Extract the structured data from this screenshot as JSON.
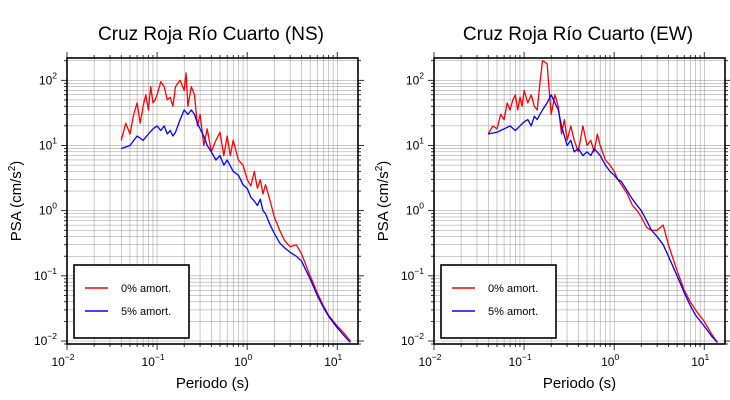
{
  "chart_data": [
    {
      "type": "line",
      "title": "Cruz Roja Río Cuarto (NS)",
      "xlabel": "Periodo (s)",
      "ylabel_main": "PSA (cm/s",
      "ylabel_exp": "2",
      "ylabel_close": ")",
      "xscale": "log",
      "yscale": "log",
      "xlim": [
        0.01,
        17
      ],
      "ylim": [
        0.009,
        220
      ],
      "grid": true,
      "legend_position": "bottom-left",
      "x_ticks": [
        {
          "base": "10",
          "exp": "−2"
        },
        {
          "base": "10",
          "exp": "−1"
        },
        {
          "base": "10",
          "exp": "0"
        },
        {
          "base": "10",
          "exp": "1"
        }
      ],
      "y_ticks": [
        {
          "base": "10",
          "exp": "−2"
        },
        {
          "base": "10",
          "exp": "−1"
        },
        {
          "base": "10",
          "exp": "0"
        },
        {
          "base": "10",
          "exp": "1"
        },
        {
          "base": "10",
          "exp": "2"
        }
      ],
      "series": [
        {
          "name": "0% amort.",
          "color": "#ff0000",
          "x": [
            0.04,
            0.045,
            0.05,
            0.055,
            0.06,
            0.065,
            0.07,
            0.075,
            0.08,
            0.085,
            0.09,
            0.095,
            0.1,
            0.11,
            0.12,
            0.13,
            0.14,
            0.15,
            0.16,
            0.18,
            0.2,
            0.21,
            0.22,
            0.24,
            0.26,
            0.28,
            0.3,
            0.33,
            0.36,
            0.4,
            0.45,
            0.5,
            0.55,
            0.6,
            0.65,
            0.7,
            0.8,
            0.9,
            1.0,
            1.1,
            1.2,
            1.3,
            1.4,
            1.5,
            1.6,
            1.8,
            2.0,
            2.3,
            2.6,
            3.0,
            3.5,
            4.0,
            5.0,
            6.0,
            7.0,
            8.0,
            10.0,
            12.0,
            14.0
          ],
          "y": [
            12,
            22,
            15,
            30,
            45,
            22,
            40,
            60,
            35,
            80,
            45,
            50,
            60,
            95,
            80,
            50,
            55,
            40,
            80,
            100,
            70,
            130,
            40,
            80,
            60,
            20,
            30,
            10,
            18,
            8,
            12,
            16,
            7,
            14,
            7,
            12,
            6,
            5,
            3,
            2.4,
            4,
            2.2,
            3,
            1.8,
            2.5,
            1.4,
            0.8,
            0.5,
            0.35,
            0.28,
            0.3,
            0.22,
            0.1,
            0.055,
            0.035,
            0.025,
            0.017,
            0.013,
            0.01
          ]
        },
        {
          "name": "5% amort.",
          "color": "#0000ff",
          "x": [
            0.04,
            0.05,
            0.06,
            0.07,
            0.08,
            0.09,
            0.1,
            0.11,
            0.12,
            0.13,
            0.14,
            0.15,
            0.16,
            0.18,
            0.2,
            0.22,
            0.24,
            0.26,
            0.28,
            0.3,
            0.33,
            0.36,
            0.4,
            0.45,
            0.5,
            0.55,
            0.6,
            0.7,
            0.8,
            0.9,
            1.0,
            1.1,
            1.2,
            1.3,
            1.4,
            1.5,
            1.6,
            1.8,
            2.0,
            2.3,
            2.6,
            3.0,
            3.5,
            4.0,
            5.0,
            6.0,
            7.0,
            8.0,
            10.0,
            12.0,
            14.0
          ],
          "y": [
            9,
            10,
            14,
            12,
            15,
            18,
            20,
            17,
            20,
            15,
            17,
            14,
            16,
            25,
            35,
            30,
            35,
            30,
            22,
            18,
            14,
            10,
            8,
            6,
            7,
            5,
            6,
            4,
            3.5,
            2.5,
            2.2,
            1.6,
            1.4,
            1.2,
            1.5,
            1.0,
            0.9,
            0.6,
            0.45,
            0.32,
            0.27,
            0.23,
            0.2,
            0.17,
            0.09,
            0.05,
            0.033,
            0.024,
            0.016,
            0.012,
            0.0095
          ]
        }
      ]
    },
    {
      "type": "line",
      "title": "Cruz Roja Río Cuarto (EW)",
      "xlabel": "Periodo (s)",
      "ylabel_main": "PSA (cm/s",
      "ylabel_exp": "2",
      "ylabel_close": ")",
      "xscale": "log",
      "yscale": "log",
      "xlim": [
        0.01,
        17
      ],
      "ylim": [
        0.009,
        220
      ],
      "grid": true,
      "legend_position": "bottom-left",
      "x_ticks": [
        {
          "base": "10",
          "exp": "−2"
        },
        {
          "base": "10",
          "exp": "−1"
        },
        {
          "base": "10",
          "exp": "0"
        },
        {
          "base": "10",
          "exp": "1"
        }
      ],
      "y_ticks": [
        {
          "base": "10",
          "exp": "−2"
        },
        {
          "base": "10",
          "exp": "−1"
        },
        {
          "base": "10",
          "exp": "0"
        },
        {
          "base": "10",
          "exp": "1"
        },
        {
          "base": "10",
          "exp": "2"
        }
      ],
      "series": [
        {
          "name": "0% amort.",
          "color": "#ff0000",
          "x": [
            0.04,
            0.045,
            0.05,
            0.055,
            0.06,
            0.065,
            0.07,
            0.075,
            0.08,
            0.085,
            0.09,
            0.095,
            0.1,
            0.11,
            0.12,
            0.13,
            0.14,
            0.15,
            0.16,
            0.17,
            0.18,
            0.19,
            0.2,
            0.22,
            0.24,
            0.26,
            0.28,
            0.3,
            0.33,
            0.36,
            0.4,
            0.45,
            0.5,
            0.55,
            0.6,
            0.65,
            0.7,
            0.8,
            0.9,
            1.0,
            1.1,
            1.2,
            1.4,
            1.6,
            1.8,
            2.0,
            2.3,
            2.6,
            3.0,
            3.5,
            4.0,
            5.0,
            6.0,
            7.0,
            8.0,
            10.0,
            12.0,
            14.0
          ],
          "y": [
            15,
            20,
            18,
            30,
            25,
            45,
            35,
            50,
            60,
            35,
            55,
            40,
            70,
            45,
            60,
            40,
            35,
            90,
            200,
            190,
            180,
            70,
            30,
            60,
            40,
            15,
            25,
            12,
            20,
            12,
            8,
            20,
            10,
            12,
            8,
            15,
            10,
            6,
            5,
            4,
            3,
            2.5,
            1.8,
            1.2,
            1.0,
            0.8,
            0.55,
            0.5,
            0.5,
            0.6,
            0.3,
            0.12,
            0.06,
            0.04,
            0.03,
            0.02,
            0.013,
            0.0095
          ]
        },
        {
          "name": "5% amort.",
          "color": "#0000ff",
          "x": [
            0.04,
            0.05,
            0.06,
            0.07,
            0.08,
            0.09,
            0.1,
            0.11,
            0.12,
            0.13,
            0.14,
            0.15,
            0.16,
            0.18,
            0.2,
            0.22,
            0.24,
            0.26,
            0.28,
            0.3,
            0.33,
            0.36,
            0.4,
            0.45,
            0.5,
            0.55,
            0.6,
            0.7,
            0.8,
            0.9,
            1.0,
            1.1,
            1.2,
            1.4,
            1.6,
            1.8,
            2.0,
            2.3,
            2.6,
            3.0,
            3.5,
            4.0,
            5.0,
            6.0,
            7.0,
            8.0,
            10.0,
            12.0,
            14.0
          ],
          "y": [
            15,
            16,
            18,
            20,
            17,
            20,
            23,
            25,
            20,
            28,
            25,
            30,
            35,
            45,
            60,
            45,
            35,
            20,
            14,
            10,
            12,
            8,
            9,
            7,
            8,
            7,
            9,
            7,
            5,
            4,
            3.5,
            3,
            2.8,
            2,
            1.5,
            1.2,
            1.0,
            0.7,
            0.5,
            0.4,
            0.3,
            0.2,
            0.1,
            0.055,
            0.035,
            0.025,
            0.017,
            0.012,
            0.0095
          ]
        }
      ]
    }
  ]
}
